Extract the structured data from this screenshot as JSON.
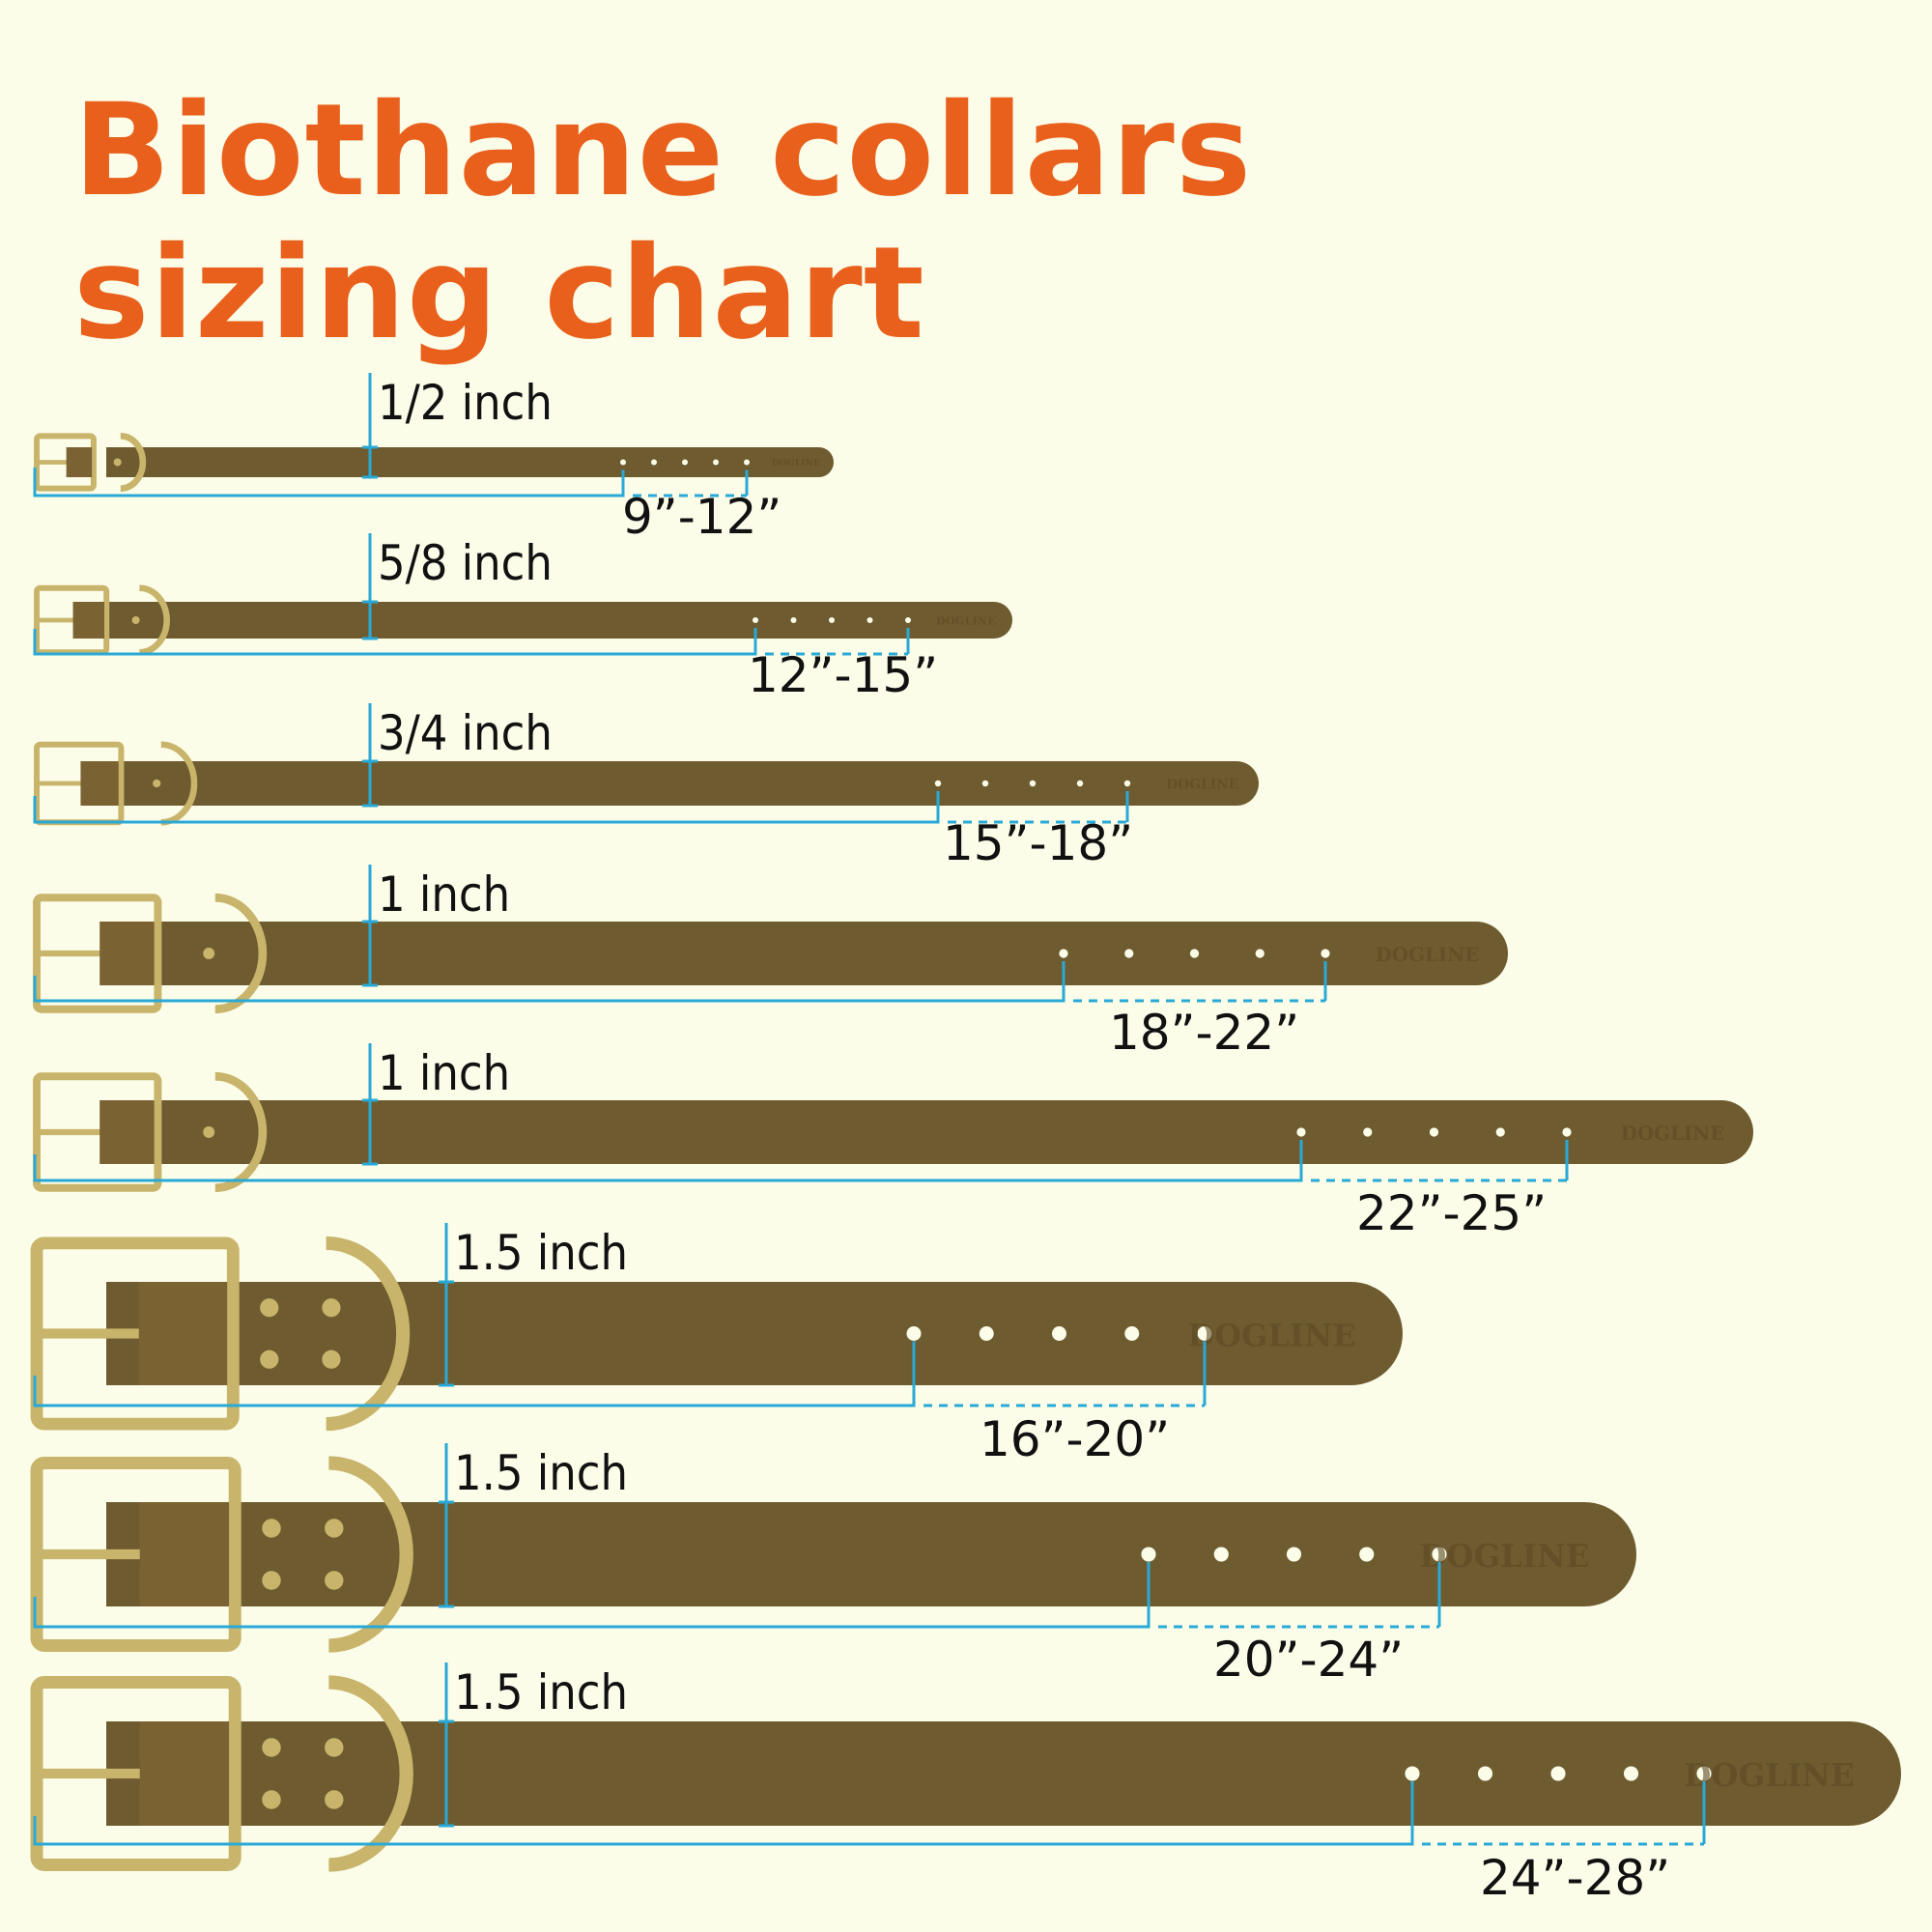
{
  "title": {
    "line1": "Biothane collars",
    "line2": "sizing chart"
  },
  "brand": "DOGLINE",
  "colors": {
    "title": "#e8601c",
    "background": "#fbfde9",
    "strap": "#6f5b30",
    "measure_line": "#29a9d6",
    "hardware": "#c8b46a"
  },
  "collars": [
    {
      "width_label": "1/2 inch",
      "size_range": "9”-12”",
      "holes": 5
    },
    {
      "width_label": "5/8 inch",
      "size_range": "12”-15”",
      "holes": 5
    },
    {
      "width_label": "3/4 inch",
      "size_range": "15”-18”",
      "holes": 5
    },
    {
      "width_label": "1 inch",
      "size_range": "18”-22”",
      "holes": 5
    },
    {
      "width_label": "1 inch",
      "size_range": "22”-25”",
      "holes": 5
    },
    {
      "width_label": "1.5 inch",
      "size_range": "16”-20”",
      "holes": 5
    },
    {
      "width_label": "1.5 inch",
      "size_range": "20”-24”",
      "holes": 5
    },
    {
      "width_label": "1.5 inch",
      "size_range": "24”-28”",
      "holes": 5
    }
  ]
}
